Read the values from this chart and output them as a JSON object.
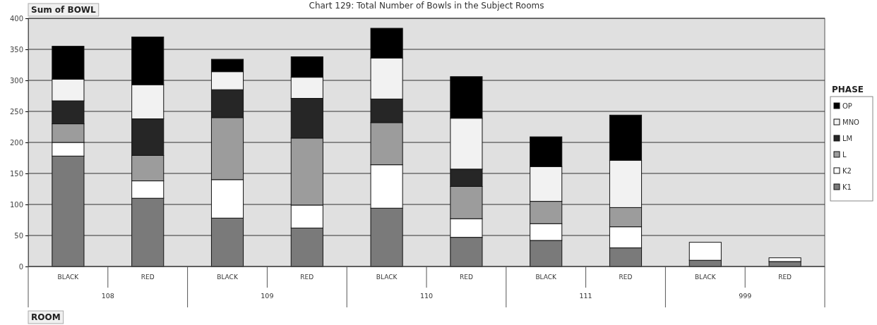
{
  "chart_data": {
    "type": "bar",
    "title": "Chart 129: Total Number of Bowls in the Subject Rooms",
    "ylabel": "Sum of BOWL",
    "xlabel": "ROOM",
    "legend_title": "PHASE",
    "categories": [
      "BLACK",
      "RED",
      "BLACK",
      "RED",
      "BLACK",
      "RED",
      "BLACK",
      "RED",
      "BLACK",
      "RED"
    ],
    "annotations": [
      "108",
      "109",
      "110",
      "111",
      "999"
    ],
    "stacked": true,
    "grid": "y",
    "legend": "right",
    "ylim": [
      0,
      400
    ],
    "yticks": [
      0,
      50,
      100,
      150,
      200,
      250,
      300,
      350,
      400
    ],
    "series": [
      {
        "name": "K1",
        "color": "#7a7a7a",
        "values": [
          178,
          110,
          78,
          62,
          94,
          47,
          42,
          30,
          10,
          8
        ]
      },
      {
        "name": "K2",
        "color": "#ffffff",
        "values": [
          22,
          28,
          62,
          37,
          70,
          30,
          27,
          34,
          29,
          6
        ]
      },
      {
        "name": "L",
        "color": "#9c9c9c",
        "values": [
          30,
          41,
          100,
          108,
          68,
          52,
          36,
          31,
          null,
          null
        ]
      },
      {
        "name": "LM",
        "color": "#262626",
        "values": [
          37,
          59,
          45,
          64,
          38,
          28,
          null,
          null,
          null,
          null
        ]
      },
      {
        "name": "MNO",
        "color": "#f2f2f2",
        "values": [
          35,
          55,
          29,
          34,
          66,
          82,
          56,
          76,
          null,
          null
        ]
      },
      {
        "name": "OP",
        "color": "#000000",
        "values": [
          53,
          77,
          20,
          33,
          48,
          67,
          48,
          73,
          null,
          null
        ]
      }
    ]
  }
}
